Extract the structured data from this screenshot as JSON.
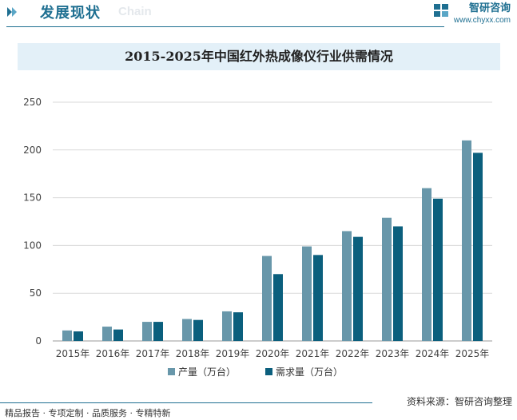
{
  "header": {
    "title": "发展现状",
    "subtitle": "Chain",
    "brand_name": "智研咨询",
    "brand_url": "www.chyxx.com"
  },
  "footer": {
    "left": "精品报告 · 专项定制 · 品质服务 · 专精特新",
    "right": "资料来源：智研咨询整理"
  },
  "colors": {
    "accent": "#1e6f91",
    "series_production": "#6897aa",
    "series_demand": "#0b5f7d",
    "banner": "#e3f0f8"
  },
  "chart_data": {
    "type": "bar",
    "title": "2015-2025年中国红外热成像仪行业供需情况",
    "categories": [
      "2015年",
      "2016年",
      "2017年",
      "2018年",
      "2019年",
      "2020年",
      "2021年",
      "2022年",
      "2023年",
      "2024年",
      "2025年"
    ],
    "series": [
      {
        "name": "产量（万台）",
        "values": [
          11,
          15,
          20,
          23,
          31,
          89,
          99,
          115,
          129,
          160,
          210
        ]
      },
      {
        "name": "需求量（万台）",
        "values": [
          10,
          12,
          20,
          22,
          30,
          70,
          90,
          109,
          120,
          149,
          197
        ]
      }
    ],
    "yticks": [
      0,
      50,
      100,
      150,
      200,
      250
    ],
    "ylim": [
      0,
      250
    ],
    "grid": true,
    "legend": "bottom"
  }
}
